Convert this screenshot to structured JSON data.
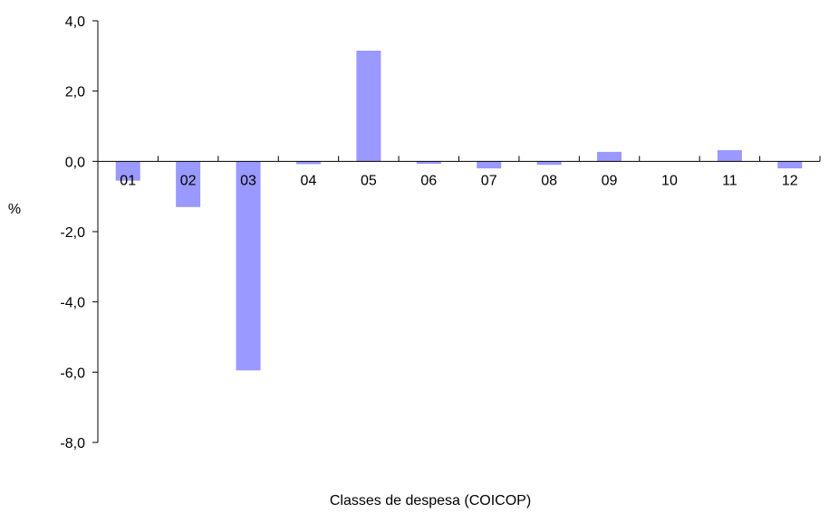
{
  "chart_data": {
    "type": "bar",
    "title": "",
    "xlabel": "Classes de despesa (COICOP)",
    "ylabel": "%",
    "categories": [
      "01",
      "02",
      "03",
      "04",
      "05",
      "06",
      "07",
      "08",
      "09",
      "10",
      "11",
      "12"
    ],
    "values": [
      -0.55,
      -1.3,
      -5.95,
      -0.08,
      3.15,
      -0.07,
      -0.2,
      -0.1,
      0.27,
      0.0,
      0.32,
      -0.2
    ],
    "ylim": [
      -8,
      4
    ],
    "yticks": [
      4,
      2,
      0,
      -2,
      -4,
      -6,
      -8
    ],
    "ytick_labels": [
      "4,0",
      "2,0",
      "0,0",
      "-2,0",
      "-4,0",
      "-6,0",
      "-8,0"
    ],
    "grid": false,
    "legend": "none",
    "bar_color": "#9999ff",
    "axis_color": "#000000"
  }
}
